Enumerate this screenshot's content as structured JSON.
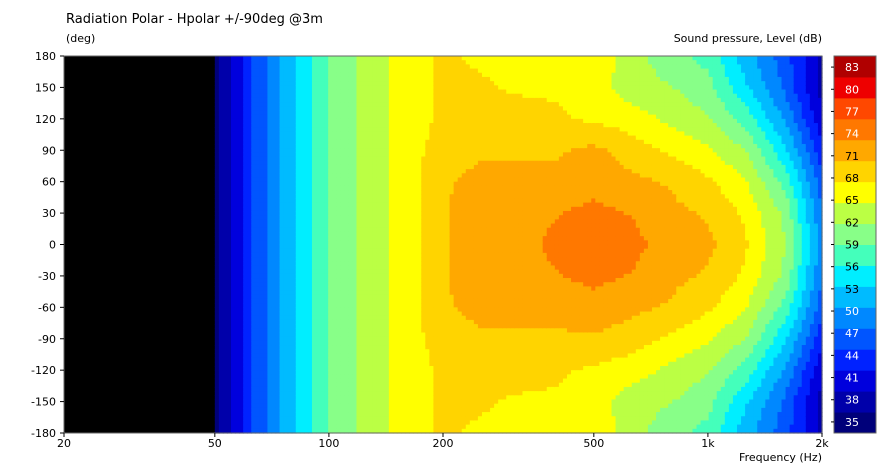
{
  "chart_data": {
    "type": "heatmap",
    "title": "Radiation Polar - Hpolar +/-90deg @3m",
    "ylabel": "(deg)",
    "xlabel": "Frequency  (Hz)",
    "colorbar_label": "Sound pressure, Level  (dB)",
    "x_scale": "log",
    "xlim": [
      20,
      2000
    ],
    "ylim": [
      -180,
      180
    ],
    "x_ticks": [
      {
        "value": 20,
        "label": "20"
      },
      {
        "value": 50,
        "label": "50"
      },
      {
        "value": 100,
        "label": "100"
      },
      {
        "value": 200,
        "label": "200"
      },
      {
        "value": 500,
        "label": "500"
      },
      {
        "value": 1000,
        "label": "1k"
      },
      {
        "value": 2000,
        "label": "2k"
      }
    ],
    "y_ticks": [
      180,
      150,
      120,
      90,
      60,
      30,
      0,
      -30,
      -60,
      -90,
      -120,
      -150,
      -180
    ],
    "colorbar": {
      "range": [
        33.5,
        84.5
      ],
      "labels": [
        83,
        80,
        77,
        74,
        71,
        68,
        65,
        62,
        59,
        56,
        53,
        50,
        47,
        44,
        41,
        38,
        35
      ],
      "colors": [
        "#00007a",
        "#0000aa",
        "#0000dd",
        "#0022ff",
        "#0055ff",
        "#0088ff",
        "#00bbff",
        "#00eeff",
        "#44ffbb",
        "#88ff88",
        "#bbff44",
        "#ffff00",
        "#ffd400",
        "#ffa800",
        "#ff7800",
        "#ff4800",
        "#ee0000",
        "#b00000"
      ]
    },
    "below_range_color": "#000000",
    "frequencies": [
      50,
      63,
      80,
      100,
      125,
      160,
      200,
      250,
      315,
      400,
      500,
      630,
      800,
      1000,
      1250,
      1600,
      2000
    ],
    "angles": [
      180,
      150,
      120,
      90,
      60,
      30,
      0,
      -30,
      -60,
      -90,
      -120,
      -150,
      -180
    ],
    "levels_db": [
      [
        35,
        45,
        53,
        59,
        63,
        66,
        68,
        67,
        66,
        66,
        67,
        63,
        60,
        58,
        52,
        46,
        38
      ],
      [
        35,
        45,
        53,
        59,
        63,
        66,
        68,
        68,
        67,
        67,
        66,
        63,
        62,
        60,
        54,
        47,
        38
      ],
      [
        35,
        45,
        53,
        59,
        63,
        66,
        68,
        69,
        69,
        68,
        67,
        66,
        64,
        62,
        58,
        50,
        40
      ],
      [
        35,
        45,
        53,
        59,
        63,
        66,
        69,
        70,
        70,
        70,
        71,
        69,
        67,
        65,
        62,
        54,
        43
      ],
      [
        35,
        45,
        53,
        59,
        63,
        66,
        70,
        71,
        71,
        71,
        72,
        71,
        70,
        68,
        65,
        58,
        46
      ],
      [
        35,
        45,
        53,
        59,
        63,
        66,
        70,
        72,
        72,
        73,
        74,
        73,
        71,
        70,
        67,
        61,
        48
      ],
      [
        35,
        45,
        53,
        59,
        63,
        66,
        70,
        72,
        72,
        74,
        74,
        74,
        72,
        71,
        68,
        62,
        49
      ],
      [
        35,
        45,
        53,
        59,
        63,
        66,
        70,
        72,
        72,
        73,
        74,
        73,
        71,
        70,
        67,
        61,
        48
      ],
      [
        35,
        45,
        53,
        59,
        63,
        66,
        70,
        71,
        71,
        71,
        72,
        71,
        70,
        68,
        65,
        58,
        46
      ],
      [
        35,
        45,
        53,
        59,
        63,
        66,
        69,
        70,
        70,
        70,
        70,
        69,
        67,
        65,
        62,
        54,
        43
      ],
      [
        35,
        45,
        53,
        59,
        63,
        66,
        68,
        69,
        69,
        68,
        67,
        66,
        64,
        62,
        58,
        50,
        40
      ],
      [
        35,
        45,
        53,
        59,
        63,
        66,
        68,
        68,
        67,
        67,
        66,
        63,
        62,
        60,
        54,
        47,
        38
      ],
      [
        35,
        45,
        53,
        59,
        63,
        66,
        68,
        67,
        66,
        66,
        67,
        63,
        60,
        58,
        52,
        46,
        38
      ]
    ]
  }
}
